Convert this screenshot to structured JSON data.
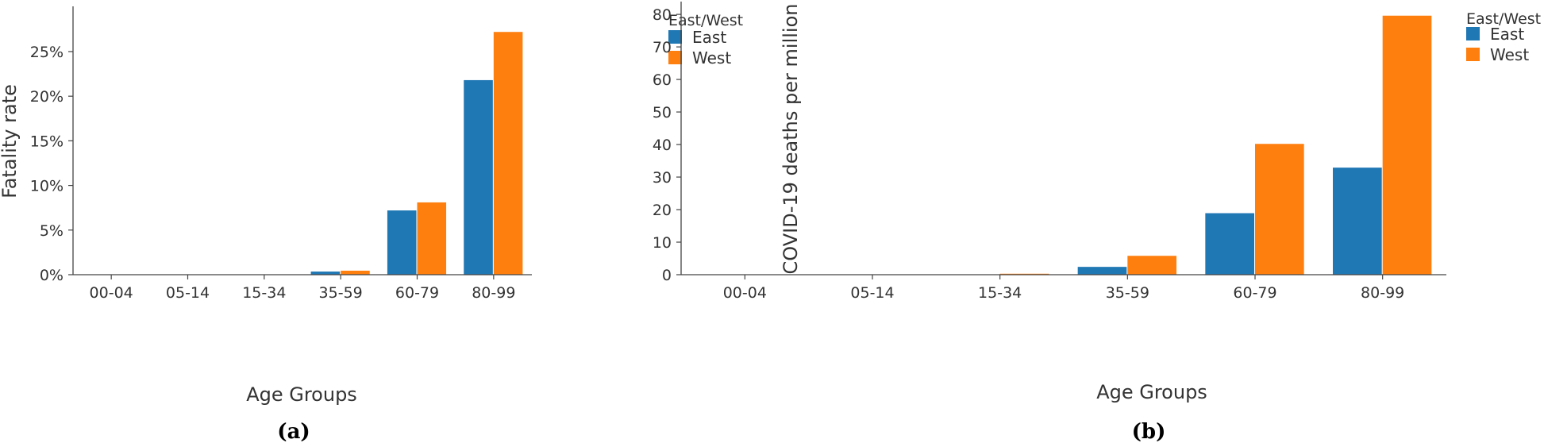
{
  "chart_data": [
    {
      "type": "bar",
      "panel_label": "(a)",
      "categories": [
        "00-04",
        "05-14",
        "15-34",
        "35-59",
        "60-79",
        "80-99"
      ],
      "series": [
        {
          "name": "East",
          "color": "#1f77b4",
          "values": [
            0.0,
            0.0,
            0.0,
            0.35,
            7.2,
            21.8
          ]
        },
        {
          "name": "West",
          "color": "#ff7f0e",
          "values": [
            0.0,
            0.0,
            0.03,
            0.45,
            8.1,
            27.2
          ]
        }
      ],
      "xlabel": "Age Groups",
      "ylabel": "Fatality rate",
      "ylim": [
        0,
        29
      ],
      "yticks": [
        0,
        5,
        10,
        15,
        20,
        25
      ],
      "ytick_labels": [
        "0%",
        "5%",
        "10%",
        "15%",
        "20%",
        "25%"
      ],
      "legend_title": "East/West",
      "legend_position": "top-right",
      "grid": false
    },
    {
      "type": "bar",
      "panel_label": "(b)",
      "categories": [
        "00-04",
        "05-14",
        "15-34",
        "35-59",
        "60-79",
        "80-99"
      ],
      "series": [
        {
          "name": "East",
          "color": "#1f77b4",
          "values": [
            0.0,
            0.0,
            0.05,
            2.4,
            18.9,
            32.9
          ]
        },
        {
          "name": "West",
          "color": "#ff7f0e",
          "values": [
            0.0,
            0.0,
            0.3,
            5.8,
            40.2,
            79.6
          ]
        }
      ],
      "xlabel": "Age Groups",
      "ylabel": "COVID-19 deaths per million",
      "ylim": [
        0,
        81
      ],
      "yticks": [
        0,
        10,
        20,
        30,
        40,
        50,
        60,
        70,
        80
      ],
      "ytick_labels": [
        "0",
        "10",
        "20",
        "30",
        "40",
        "50",
        "60",
        "70",
        "80"
      ],
      "legend_title": "East/West",
      "legend_position": "top-right",
      "grid": false
    }
  ]
}
